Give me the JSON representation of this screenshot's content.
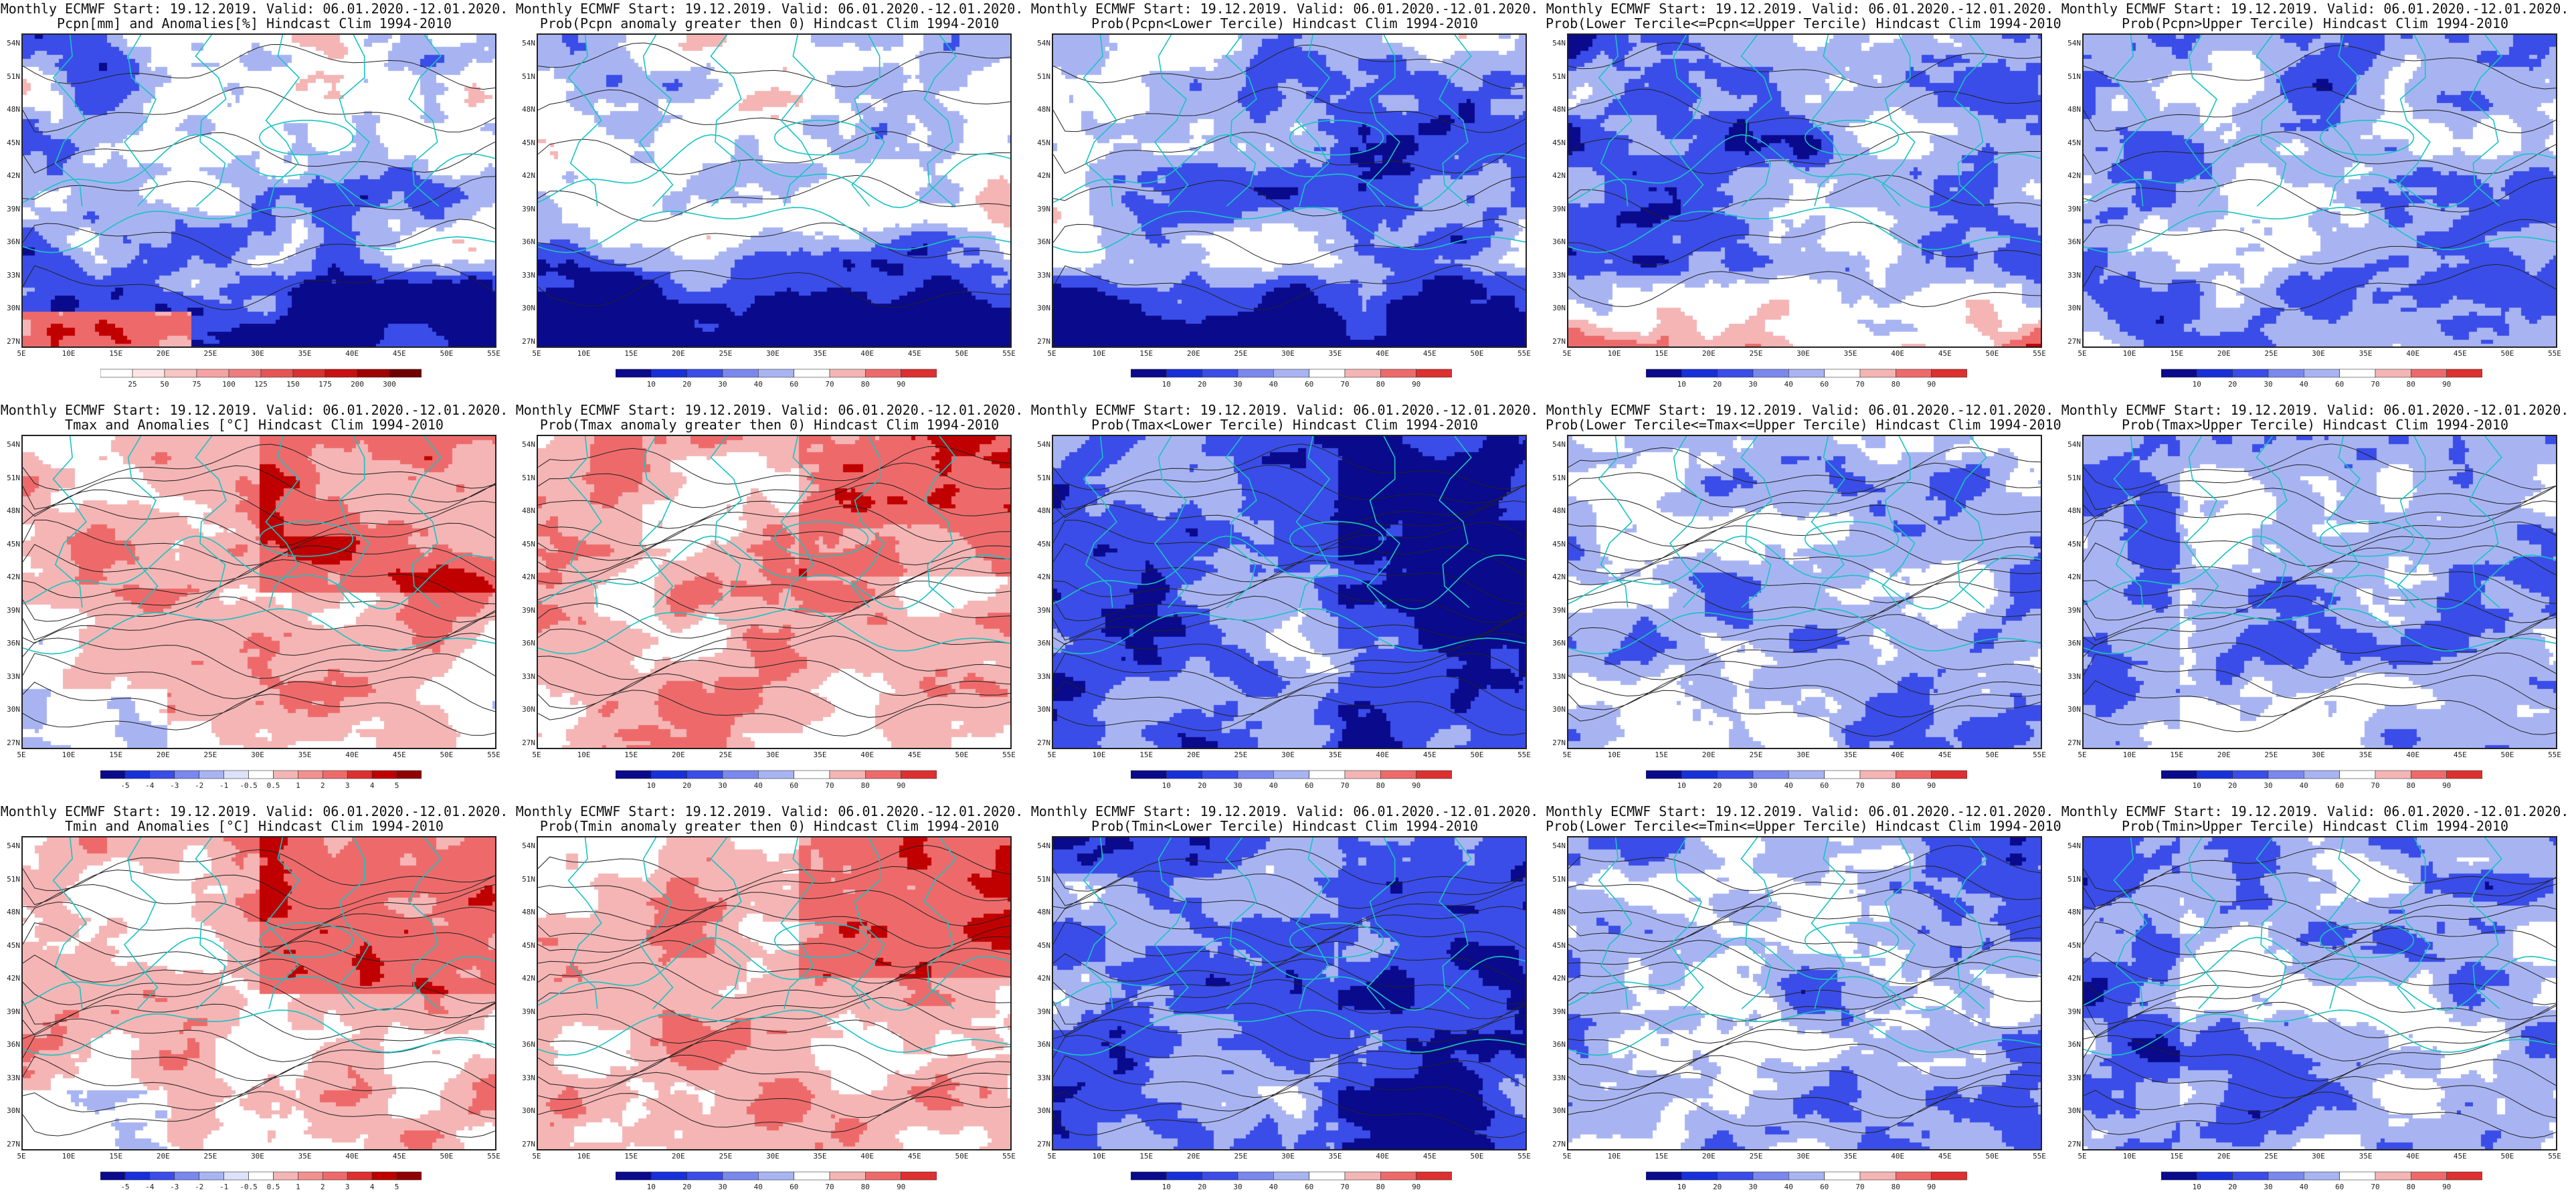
{
  "colors": {
    "blue_deep": "#0a0a8c",
    "blue_mid": "#3a4de8",
    "blue_light": "#a8b4f2",
    "red_light": "#f5b5b5",
    "red_mid": "#ee6a6a",
    "red_deep": "#c00000",
    "coast": "#19c3c3",
    "contour": "#222222"
  },
  "lat_labels": [
    "54N",
    "51N",
    "48N",
    "45N",
    "42N",
    "39N",
    "36N",
    "33N",
    "30N",
    "27N"
  ],
  "lon_labels": [
    "5E",
    "10E",
    "15E",
    "20E",
    "25E",
    "30E",
    "35E",
    "40E",
    "45E",
    "50E",
    "55E"
  ],
  "scales": {
    "pcpn_anom": [
      "25",
      "50",
      "75",
      "100",
      "125",
      "150",
      "175",
      "200",
      "300"
    ],
    "prob": [
      "10",
      "20",
      "30",
      "40",
      "60",
      "70",
      "80",
      "90"
    ],
    "temp_anom": [
      "-5",
      "-4",
      "-3",
      "-2",
      "-1",
      "-0.5",
      "0.5",
      "1",
      "2",
      "3",
      "4",
      "5"
    ]
  },
  "panels": [
    {
      "title": "Monthly ECMWF Start: 19.12.2019. Valid: 06.01.2020.-12.01.2020.",
      "sub": "Pcpn[mm] and Anomalies[%] Hindcast Clim 1994-2010",
      "scale": "pcpn_anom",
      "style": "pcpn_anom"
    },
    {
      "title": "Monthly ECMWF Start: 19.12.2019. Valid: 06.01.2020.-12.01.2020.",
      "sub": "Prob(Pcpn anomaly greater then 0) Hindcast Clim 1994-2010",
      "scale": "prob",
      "style": "pcpn_prob"
    },
    {
      "title": "Monthly ECMWF Start: 19.12.2019. Valid: 06.01.2020.-12.01.2020.",
      "sub": "Prob(Pcpn<Lower Tercile) Hindcast Clim 1994-2010",
      "scale": "prob",
      "style": "pcpn_lower"
    },
    {
      "title": "Monthly ECMWF Start: 19.12.2019. Valid: 06.01.2020.-12.01.2020.",
      "sub": "Prob(Lower Tercile<=Pcpn<=Upper Tercile) Hindcast Clim 1994-2010",
      "scale": "prob",
      "style": "pcpn_mid"
    },
    {
      "title": "Monthly ECMWF Start: 19.12.2019. Valid: 06.01.2020.-12.01.2020.",
      "sub": "Prob(Pcpn>Upper Tercile) Hindcast Clim 1994-2010",
      "scale": "prob",
      "style": "pcpn_upper"
    },
    {
      "title": "Monthly ECMWF Start: 19.12.2019. Valid: 06.01.2020.-12.01.2020.",
      "sub": "Tmax and Anomalies [°C] Hindcast Clim 1994-2010",
      "scale": "temp_anom",
      "style": "t_anom"
    },
    {
      "title": "Monthly ECMWF Start: 19.12.2019. Valid: 06.01.2020.-12.01.2020.",
      "sub": "Prob(Tmax anomaly greater then 0) Hindcast Clim 1994-2010",
      "scale": "prob",
      "style": "t_prob"
    },
    {
      "title": "Monthly ECMWF Start: 19.12.2019. Valid: 06.01.2020.-12.01.2020.",
      "sub": "Prob(Tmax<Lower Tercile) Hindcast Clim 1994-2010",
      "scale": "prob",
      "style": "t_lower"
    },
    {
      "title": "Monthly ECMWF Start: 19.12.2019. Valid: 06.01.2020.-12.01.2020.",
      "sub": "Prob(Lower Tercile<=Tmax<=Upper Tercile) Hindcast Clim 1994-2010",
      "scale": "prob",
      "style": "t_mid"
    },
    {
      "title": "Monthly ECMWF Start: 19.12.2019. Valid: 06.01.2020.-12.01.2020.",
      "sub": "Prob(Tmax>Upper Tercile) Hindcast Clim 1994-2010",
      "scale": "prob",
      "style": "t_upper"
    },
    {
      "title": "Monthly ECMWF Start: 19.12.2019. Valid: 06.01.2020.-12.01.2020.",
      "sub": "Tmin and Anomalies [°C] Hindcast Clim 1994-2010",
      "scale": "temp_anom",
      "style": "t_anom"
    },
    {
      "title": "Monthly ECMWF Start: 19.12.2019. Valid: 06.01.2020.-12.01.2020.",
      "sub": "Prob(Tmin anomaly greater then 0) Hindcast Clim 1994-2010",
      "scale": "prob",
      "style": "t_prob"
    },
    {
      "title": "Monthly ECMWF Start: 19.12.2019. Valid: 06.01.2020.-12.01.2020.",
      "sub": "Prob(Tmin<Lower Tercile) Hindcast Clim 1994-2010",
      "scale": "prob",
      "style": "t_lower"
    },
    {
      "title": "Monthly ECMWF Start: 19.12.2019. Valid: 06.01.2020.-12.01.2020.",
      "sub": "Prob(Lower Tercile<=Tmin<=Upper Tercile) Hindcast Clim 1994-2010",
      "scale": "prob",
      "style": "t_mid"
    },
    {
      "title": "Monthly ECMWF Start: 19.12.2019. Valid: 06.01.2020.-12.01.2020.",
      "sub": "Prob(Tmin>Upper Tercile) Hindcast Clim 1994-2010",
      "scale": "prob",
      "style": "t_upper"
    }
  ]
}
